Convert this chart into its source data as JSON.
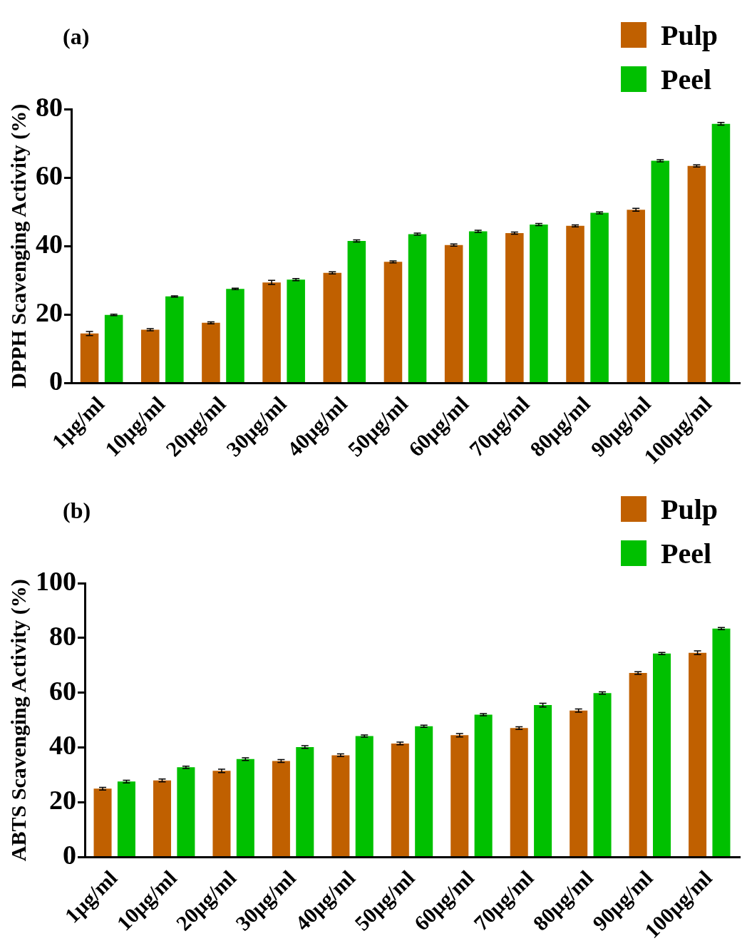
{
  "chart_data": [
    {
      "type": "bar",
      "title": "(a)",
      "ylabel": "DPPH Scavenging Activity (%)",
      "categories": [
        "1µg/ml",
        "10µg/ml",
        "20µg/ml",
        "30µg/ml",
        "40µg/ml",
        "50µg/ml",
        "60µg/ml",
        "70µg/ml",
        "80µg/ml",
        "90µg/ml",
        "100µg/ml"
      ],
      "series": [
        {
          "name": "Pulp",
          "color": "#c06000",
          "values": [
            14.5,
            15.6,
            17.6,
            29.4,
            32.2,
            35.4,
            40.3,
            43.8,
            45.9,
            50.6,
            63.4
          ],
          "errors": [
            0.6,
            0.3,
            0.3,
            0.6,
            0.3,
            0.3,
            0.3,
            0.3,
            0.3,
            0.4,
            0.3
          ]
        },
        {
          "name": "Peel",
          "color": "#00c000",
          "values": [
            19.9,
            25.3,
            27.5,
            30.2,
            41.5,
            43.5,
            44.3,
            46.3,
            49.7,
            64.9,
            75.7
          ],
          "errors": [
            0.2,
            0.2,
            0.2,
            0.3,
            0.3,
            0.3,
            0.3,
            0.3,
            0.3,
            0.3,
            0.4
          ]
        }
      ],
      "ylim": [
        0,
        80
      ],
      "yticks": [
        0,
        20,
        40,
        60,
        80
      ],
      "grid": false,
      "legend": "top right"
    },
    {
      "type": "bar",
      "title": "(b)",
      "ylabel": "ABTS Scavenging Activity (%)",
      "categories": [
        "1µg/ml",
        "10µg/ml",
        "20µg/ml",
        "30µg/ml",
        "40µg/ml",
        "50µg/ml",
        "60µg/ml",
        "70µg/ml",
        "80µg/ml",
        "90µg/ml",
        "100µg/ml"
      ],
      "series": [
        {
          "name": "Pulp",
          "color": "#c06000",
          "values": [
            25.0,
            28.0,
            31.5,
            35.1,
            37.2,
            41.5,
            44.5,
            47.1,
            53.5,
            67.2,
            74.6
          ],
          "errors": [
            0.5,
            0.5,
            0.6,
            0.5,
            0.5,
            0.5,
            0.6,
            0.5,
            0.6,
            0.5,
            0.7
          ]
        },
        {
          "name": "Peel",
          "color": "#00c000",
          "values": [
            27.6,
            32.8,
            35.8,
            40.2,
            44.2,
            47.8,
            52.0,
            55.5,
            59.9,
            74.3,
            83.4
          ],
          "errors": [
            0.5,
            0.4,
            0.5,
            0.5,
            0.4,
            0.4,
            0.4,
            0.7,
            0.4,
            0.4,
            0.4
          ]
        }
      ],
      "ylim": [
        0,
        100
      ],
      "yticks": [
        0,
        20,
        40,
        60,
        80,
        100
      ],
      "grid": false,
      "legend": "top right"
    }
  ]
}
